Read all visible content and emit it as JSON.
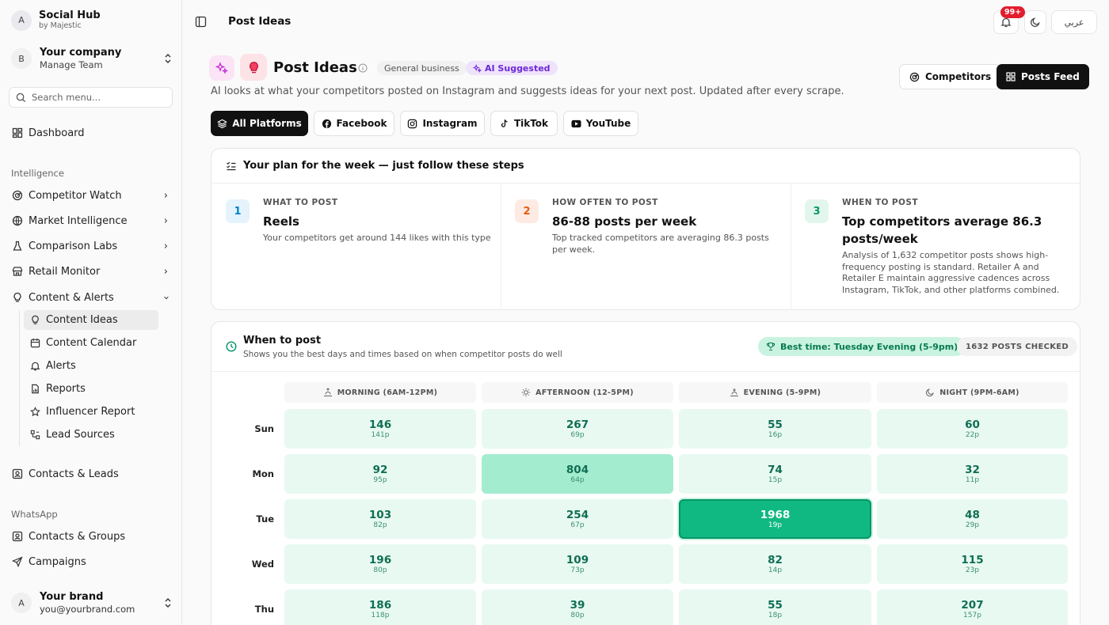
{
  "app": {
    "name": "Social Hub",
    "sub": "by Majestic",
    "avatar": "A"
  },
  "company": {
    "avatar": "B",
    "name": "Your company",
    "sub": "Manage Team"
  },
  "search": {
    "placeholder": "Search menu..."
  },
  "nav": {
    "dashboard": "Dashboard",
    "section_intelligence": "Intelligence",
    "competitor_watch": "Competitor Watch",
    "market_intelligence": "Market Intelligence",
    "comparison_labs": "Comparison Labs",
    "retail_monitor": "Retail Monitor",
    "content_alerts": "Content & Alerts",
    "sub": {
      "content_ideas": "Content Ideas",
      "content_calendar": "Content Calendar",
      "alerts": "Alerts",
      "reports": "Reports",
      "influencer_report": "Influencer Report",
      "lead_sources": "Lead Sources"
    },
    "contacts_leads": "Contacts & Leads",
    "section_whatsapp": "WhatsApp",
    "contacts_groups": "Contacts & Groups",
    "campaigns": "Campaigns"
  },
  "user": {
    "avatar": "A",
    "name": "Your brand",
    "email": "you@yourbrand.com"
  },
  "topbar": {
    "title": "Post Ideas",
    "notif_count": "99+",
    "lang": "عربي"
  },
  "page": {
    "title": "Post Ideas",
    "pill_general": "General business",
    "pill_ai": "AI Suggested",
    "subtitle": "AI looks at what your competitors posted on Instagram and suggests ideas for your next post. Updated after every scrape.",
    "btn_competitors": "Competitors",
    "btn_posts_feed": "Posts Feed"
  },
  "platforms": [
    "All Platforms",
    "Facebook",
    "Instagram",
    "TikTok",
    "YouTube"
  ],
  "plan": {
    "title": "Your plan for the week — just follow these steps",
    "steps": [
      {
        "num": "1",
        "label": "WHAT TO POST",
        "title": "Reels",
        "desc": "Your competitors get around 144 likes with this type"
      },
      {
        "num": "2",
        "label": "HOW OFTEN TO POST",
        "title": "86-88 posts per week",
        "desc": "Top tracked competitors are averaging 86.3 posts per week."
      },
      {
        "num": "3",
        "label": "WHEN TO POST",
        "title": "Top competitors average 86.3 posts/week",
        "desc": "Analysis of 1,632 competitor posts shows high-frequency posting is standard. Retailer A and Retailer E maintain aggressive cadences across Instagram, TikTok, and other platforms combined."
      }
    ]
  },
  "when": {
    "title": "When to post",
    "sub": "Shows you the best days and times based on when competitor posts do well",
    "best": "Best time: Tuesday Evening (5-9pm)",
    "checked": "1632 POSTS CHECKED",
    "columns": [
      "MORNING (6AM-12PM)",
      "AFTERNOON (12-5PM)",
      "EVENING (5-9PM)",
      "NIGHT (9PM-6AM)"
    ],
    "rows": [
      {
        "day": "Sun",
        "cells": [
          {
            "v": "146",
            "p": "141p"
          },
          {
            "v": "267",
            "p": "69p"
          },
          {
            "v": "55",
            "p": "16p"
          },
          {
            "v": "60",
            "p": "22p"
          }
        ]
      },
      {
        "day": "Mon",
        "cells": [
          {
            "v": "92",
            "p": "95p"
          },
          {
            "v": "804",
            "p": "64p"
          },
          {
            "v": "74",
            "p": "15p"
          },
          {
            "v": "32",
            "p": "11p"
          }
        ]
      },
      {
        "day": "Tue",
        "cells": [
          {
            "v": "103",
            "p": "82p"
          },
          {
            "v": "254",
            "p": "67p"
          },
          {
            "v": "1968",
            "p": "19p"
          },
          {
            "v": "48",
            "p": "29p"
          }
        ]
      },
      {
        "day": "Wed",
        "cells": [
          {
            "v": "196",
            "p": "80p"
          },
          {
            "v": "109",
            "p": "73p"
          },
          {
            "v": "82",
            "p": "14p"
          },
          {
            "v": "115",
            "p": "23p"
          }
        ]
      },
      {
        "day": "Thu",
        "cells": [
          {
            "v": "186",
            "p": "118p"
          },
          {
            "v": "39",
            "p": "80p"
          },
          {
            "v": "55",
            "p": "18p"
          },
          {
            "v": "207",
            "p": "157p"
          }
        ]
      }
    ]
  },
  "colors": {
    "cell_low": "#e8f9f1",
    "cell_mid": "#a3ecd0",
    "cell_best": "#10b981",
    "accent_ai": "#6d28d9",
    "notif_badge": "#e11d2e"
  }
}
